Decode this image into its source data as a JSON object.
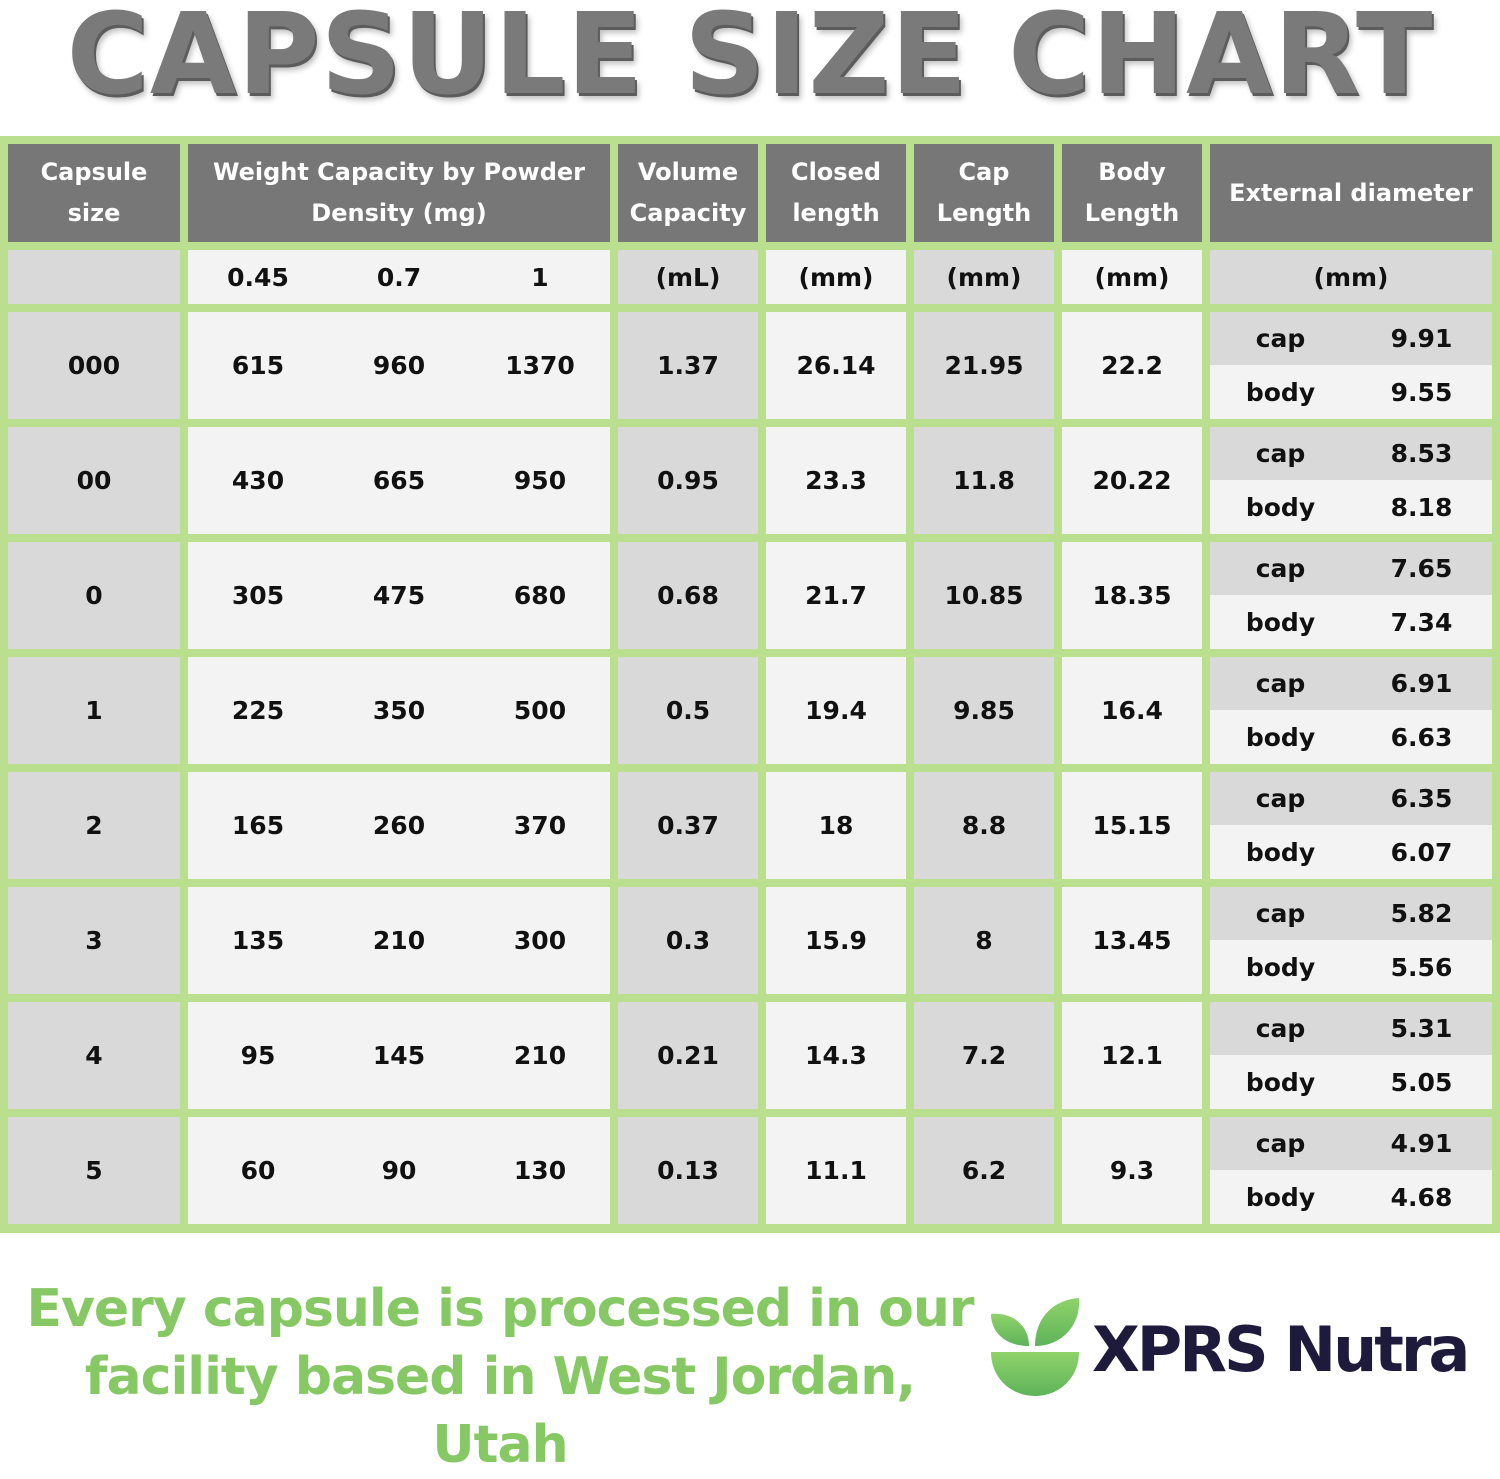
{
  "title": "CAPSULE SIZE CHART",
  "headers": {
    "capsule_size": "Capsule size",
    "weight_capacity": "Weight Capacity by Powder Density (mg)",
    "volume": "Volume Capacity",
    "closed_length": "Closed length",
    "cap_length": "Cap Length",
    "body_length": "Body Length",
    "external_diameter": "External diameter"
  },
  "units": {
    "densities": [
      "0.45",
      "0.7",
      "1"
    ],
    "volume": "(mL)",
    "closed_length": "(mm)",
    "cap_length": "(mm)",
    "body_length": "(mm)",
    "external_diameter": "(mm)"
  },
  "diameter_labels": {
    "cap": "cap",
    "body": "body"
  },
  "rows": [
    {
      "size": "000",
      "w045": "615",
      "w07": "960",
      "w1": "1370",
      "volume": "1.37",
      "closed": "26.14",
      "cap_len": "21.95",
      "body_len": "22.2",
      "cap_dia": "9.91",
      "body_dia": "9.55"
    },
    {
      "size": "00",
      "w045": "430",
      "w07": "665",
      "w1": "950",
      "volume": "0.95",
      "closed": "23.3",
      "cap_len": "11.8",
      "body_len": "20.22",
      "cap_dia": "8.53",
      "body_dia": "8.18"
    },
    {
      "size": "0",
      "w045": "305",
      "w07": "475",
      "w1": "680",
      "volume": "0.68",
      "closed": "21.7",
      "cap_len": "10.85",
      "body_len": "18.35",
      "cap_dia": "7.65",
      "body_dia": "7.34"
    },
    {
      "size": "1",
      "w045": "225",
      "w07": "350",
      "w1": "500",
      "volume": "0.5",
      "closed": "19.4",
      "cap_len": "9.85",
      "body_len": "16.4",
      "cap_dia": "6.91",
      "body_dia": "6.63"
    },
    {
      "size": "2",
      "w045": "165",
      "w07": "260",
      "w1": "370",
      "volume": "0.37",
      "closed": "18",
      "cap_len": "8.8",
      "body_len": "15.15",
      "cap_dia": "6.35",
      "body_dia": "6.07"
    },
    {
      "size": "3",
      "w045": "135",
      "w07": "210",
      "w1": "300",
      "volume": "0.3",
      "closed": "15.9",
      "cap_len": "8",
      "body_len": "13.45",
      "cap_dia": "5.82",
      "body_dia": "5.56"
    },
    {
      "size": "4",
      "w045": "95",
      "w07": "145",
      "w1": "210",
      "volume": "0.21",
      "closed": "14.3",
      "cap_len": "7.2",
      "body_len": "12.1",
      "cap_dia": "5.31",
      "body_dia": "5.05"
    },
    {
      "size": "5",
      "w045": "60",
      "w07": "90",
      "w1": "130",
      "volume": "0.13",
      "closed": "11.1",
      "cap_len": "6.2",
      "body_len": "9.3",
      "cap_dia": "4.91",
      "body_dia": "4.68"
    }
  ],
  "footer": {
    "text": "Every capsule is processed in our facility based in West Jordan, Utah",
    "brand": "XPRS Nutra",
    "logo_icon": "leaf-bowl-icon"
  },
  "colors": {
    "grid_green": "#b9df8f",
    "header_gray": "#777777",
    "footer_green": "#86c864",
    "brand_navy": "#1e1a3c"
  }
}
